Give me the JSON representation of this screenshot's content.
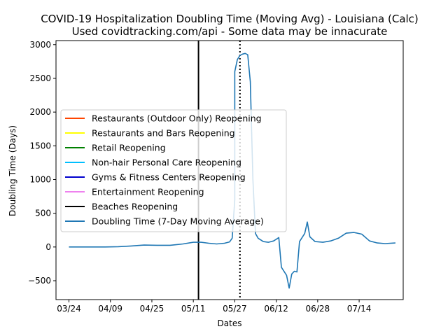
{
  "chart_data": {
    "type": "line",
    "title": "COVID-19 Hospitalization Doubling Time (Moving Avg) - Louisiana (Calc)",
    "subtitle": "Used covidtracking.com/api - Some data may be innacurate",
    "xlabel": "Dates",
    "ylabel": "Doubling Time (Days)",
    "x_tick_labels": [
      "03/24",
      "04/09",
      "04/25",
      "05/11",
      "05/27",
      "06/12",
      "06/28",
      "07/14"
    ],
    "y_ticks": [
      -500,
      0,
      500,
      1000,
      1500,
      2000,
      2500,
      3000
    ],
    "xlim": [
      "2020-03-19",
      "2020-07-31"
    ],
    "ylim": [
      -780,
      3060
    ],
    "legend_position": "center-left",
    "grid": false,
    "events": [
      {
        "name": "Restaurants (Outdoor Only) Reopening",
        "color": "#ff4500",
        "date": "",
        "style": "solid"
      },
      {
        "name": "Restaurants and Bars Reopening",
        "color": "#ffff00",
        "date": "",
        "style": "solid"
      },
      {
        "name": "Retail Reopening",
        "color": "#008000",
        "date": "",
        "style": "solid"
      },
      {
        "name": "Non-hair Personal Care Reopening",
        "color": "#00bfff",
        "date": "",
        "style": "solid"
      },
      {
        "name": "Gyms & Fitness Centers Reopening",
        "color": "#0000cd",
        "date": "",
        "style": "solid"
      },
      {
        "name": "Entertainment Reopening",
        "color": "#ee82ee",
        "date": "",
        "style": "solid"
      },
      {
        "name": "Beaches Reopening",
        "color": "#000000",
        "date": "2020-05-13",
        "style": "solid"
      }
    ],
    "unlabeled_markers": [
      {
        "date": "2020-05-29",
        "color": "#000000",
        "style": "dotted"
      }
    ],
    "series": [
      {
        "name": "Doubling Time (7-Day Moving Average)",
        "color": "#1f77b4",
        "points": [
          [
            "2020-03-24",
            0
          ],
          [
            "2020-03-28",
            0
          ],
          [
            "2020-04-02",
            0
          ],
          [
            "2020-04-07",
            0
          ],
          [
            "2020-04-12",
            5
          ],
          [
            "2020-04-17",
            15
          ],
          [
            "2020-04-22",
            28
          ],
          [
            "2020-04-27",
            25
          ],
          [
            "2020-05-02",
            25
          ],
          [
            "2020-05-07",
            45
          ],
          [
            "2020-05-11",
            70
          ],
          [
            "2020-05-14",
            70
          ],
          [
            "2020-05-17",
            55
          ],
          [
            "2020-05-20",
            45
          ],
          [
            "2020-05-23",
            55
          ],
          [
            "2020-05-25",
            75
          ],
          [
            "2020-05-26",
            130
          ],
          [
            "2020-05-27",
            700
          ],
          [
            "2020-05-27",
            2600
          ],
          [
            "2020-05-28",
            2780
          ],
          [
            "2020-05-29",
            2840
          ],
          [
            "2020-05-30",
            2860
          ],
          [
            "2020-05-31",
            2870
          ],
          [
            "2020-06-01",
            2850
          ],
          [
            "2020-06-02",
            2450
          ],
          [
            "2020-06-03",
            1000
          ],
          [
            "2020-06-04",
            200
          ],
          [
            "2020-06-05",
            130
          ],
          [
            "2020-06-07",
            80
          ],
          [
            "2020-06-09",
            70
          ],
          [
            "2020-06-11",
            90
          ],
          [
            "2020-06-13",
            140
          ],
          [
            "2020-06-14",
            -300
          ],
          [
            "2020-06-16",
            -420
          ],
          [
            "2020-06-17",
            -610
          ],
          [
            "2020-06-18",
            -400
          ],
          [
            "2020-06-19",
            -360
          ],
          [
            "2020-06-20",
            -370
          ],
          [
            "2020-06-21",
            80
          ],
          [
            "2020-06-23",
            200
          ],
          [
            "2020-06-24",
            370
          ],
          [
            "2020-06-25",
            150
          ],
          [
            "2020-06-27",
            80
          ],
          [
            "2020-06-30",
            70
          ],
          [
            "2020-07-03",
            90
          ],
          [
            "2020-07-06",
            130
          ],
          [
            "2020-07-09",
            205
          ],
          [
            "2020-07-12",
            215
          ],
          [
            "2020-07-15",
            190
          ],
          [
            "2020-07-18",
            90
          ],
          [
            "2020-07-21",
            60
          ],
          [
            "2020-07-24",
            50
          ],
          [
            "2020-07-28",
            60
          ]
        ]
      }
    ]
  }
}
